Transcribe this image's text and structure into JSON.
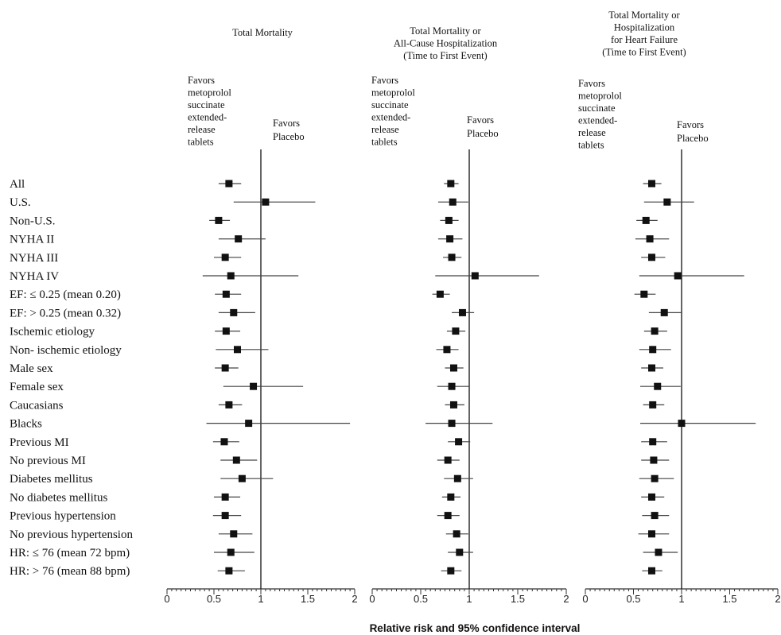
{
  "chart_data": {
    "type": "forest",
    "xlabel": "Relative risk and 95% confidence interval",
    "xlim": [
      0,
      2
    ],
    "xticks": [
      "0",
      "0.5",
      "1",
      "1.5",
      "2"
    ],
    "reference_line": 1,
    "subgroups": [
      "All",
      "U.S.",
      "Non-U.S.",
      "NYHA II",
      "NYHA III",
      "NYHA IV",
      "EF: ≤ 0.25 (mean 0.20)",
      "EF: > 0.25 (mean 0.32)",
      "Ischemic etiology",
      "Non- ischemic etiology",
      "Male sex",
      "Female sex",
      "Caucasians",
      "Blacks",
      "Previous MI",
      "No previous MI",
      "Diabetes mellitus",
      "No diabetes mellitus",
      "Previous hypertension",
      "No previous hypertension",
      "HR: ≤ 76 (mean 72 bpm)",
      "HR: > 76 (mean 88 bpm)"
    ],
    "panels": [
      {
        "title": [
          "Total Mortality"
        ],
        "favors_left": [
          "Favors",
          "metoprolol",
          "succinate",
          "extended-",
          "release",
          "tablets"
        ],
        "favors_right": [
          "Favors",
          "Placebo"
        ],
        "estimates": [
          0.66,
          1.05,
          0.55,
          0.76,
          0.62,
          0.68,
          0.63,
          0.71,
          0.63,
          0.75,
          0.62,
          0.92,
          0.66,
          0.87,
          0.61,
          0.74,
          0.8,
          0.62,
          0.62,
          0.71,
          0.68,
          0.66
        ],
        "lower": [
          0.55,
          0.71,
          0.45,
          0.55,
          0.5,
          0.38,
          0.51,
          0.55,
          0.51,
          0.52,
          0.51,
          0.6,
          0.55,
          0.42,
          0.49,
          0.57,
          0.57,
          0.5,
          0.49,
          0.55,
          0.5,
          0.54
        ],
        "upper": [
          0.79,
          1.58,
          0.67,
          1.05,
          0.79,
          1.4,
          0.79,
          0.94,
          0.78,
          1.08,
          0.76,
          1.45,
          0.8,
          1.95,
          0.77,
          0.96,
          1.13,
          0.78,
          0.79,
          0.91,
          0.93,
          0.83
        ]
      },
      {
        "title": [
          "Total Mortality or",
          "All-Cause Hospitalization",
          "(Time to First Event)"
        ],
        "favors_left": [
          "Favors",
          "metoprolol",
          "succinate",
          "extended-",
          "release",
          "tablets"
        ],
        "favors_right": [
          "Favors",
          "Placebo"
        ],
        "estimates": [
          0.81,
          0.83,
          0.79,
          0.8,
          0.82,
          1.06,
          0.7,
          0.93,
          0.86,
          0.77,
          0.84,
          0.82,
          0.84,
          0.82,
          0.89,
          0.78,
          0.88,
          0.81,
          0.78,
          0.87,
          0.9,
          0.81
        ],
        "lower": [
          0.74,
          0.68,
          0.7,
          0.68,
          0.73,
          0.65,
          0.62,
          0.82,
          0.77,
          0.66,
          0.75,
          0.67,
          0.75,
          0.55,
          0.78,
          0.67,
          0.74,
          0.72,
          0.67,
          0.76,
          0.78,
          0.71
        ],
        "upper": [
          0.89,
          0.99,
          0.89,
          0.93,
          0.92,
          1.72,
          0.8,
          1.05,
          0.96,
          0.89,
          0.94,
          1.0,
          0.95,
          1.24,
          1.01,
          0.9,
          1.04,
          0.91,
          0.9,
          0.99,
          1.04,
          0.92
        ]
      },
      {
        "title": [
          "Total Mortality or",
          "Hospitalization",
          "for Heart Failure",
          "(Time to First Event)"
        ],
        "favors_left": [
          "Favors",
          "metoprolol",
          "succinate",
          "extended-",
          "release",
          "tablets"
        ],
        "favors_right": [
          "Favors",
          "Placebo"
        ],
        "estimates": [
          0.69,
          0.85,
          0.63,
          0.67,
          0.69,
          0.96,
          0.61,
          0.82,
          0.72,
          0.7,
          0.69,
          0.75,
          0.7,
          1.0,
          0.7,
          0.71,
          0.72,
          0.69,
          0.72,
          0.69,
          0.76,
          0.69
        ],
        "lower": [
          0.6,
          0.61,
          0.53,
          0.52,
          0.58,
          0.56,
          0.51,
          0.66,
          0.61,
          0.56,
          0.58,
          0.57,
          0.6,
          0.57,
          0.58,
          0.58,
          0.56,
          0.58,
          0.59,
          0.55,
          0.6,
          0.59
        ],
        "upper": [
          0.79,
          1.13,
          0.75,
          0.87,
          0.83,
          1.65,
          0.73,
          1.0,
          0.85,
          0.89,
          0.81,
          0.99,
          0.82,
          1.77,
          0.85,
          0.87,
          0.92,
          0.82,
          0.87,
          0.87,
          0.96,
          0.8
        ]
      }
    ]
  }
}
